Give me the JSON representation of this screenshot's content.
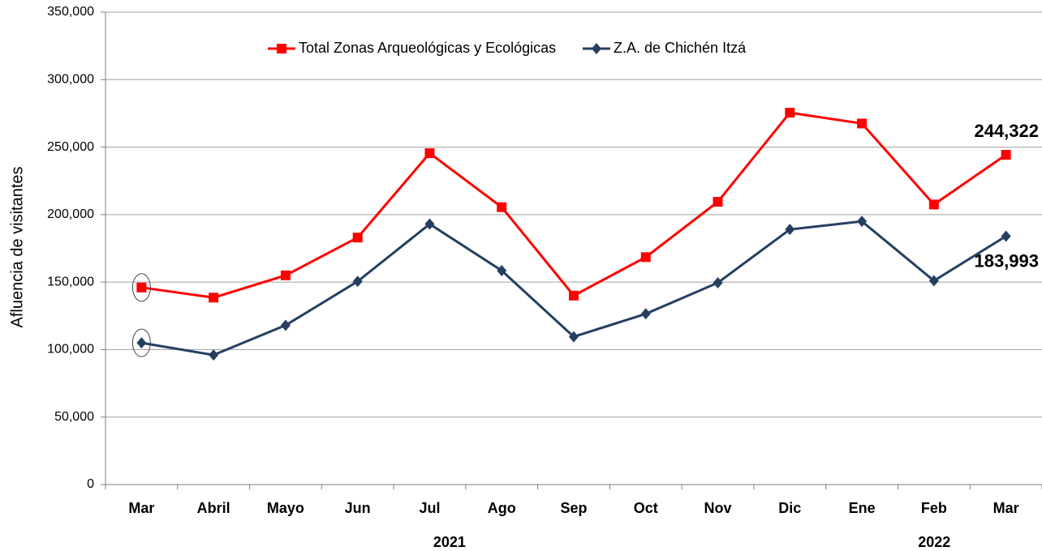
{
  "chart_data": {
    "type": "line",
    "y_label": "Afluencia de visitantes",
    "categories": [
      "Mar",
      "Abril",
      "Mayo",
      "Jun",
      "Jul",
      "Ago",
      "Sep",
      "Oct",
      "Nov",
      "Dic",
      "Ene",
      "Feb",
      "Mar"
    ],
    "x_group_labels": [
      "2021",
      "2022"
    ],
    "series": [
      {
        "name": "Total Zonas Arqueológicas y Ecológicas",
        "color": "#ff0000",
        "marker": "square",
        "values": [
          146000,
          138500,
          155000,
          183000,
          245500,
          205500,
          140000,
          168500,
          209500,
          275500,
          267500,
          207500,
          244322
        ],
        "value_labels": [
          null,
          null,
          null,
          null,
          null,
          null,
          null,
          null,
          null,
          null,
          null,
          null,
          "244,322"
        ]
      },
      {
        "name": "Z.A. de Chichén Itzá",
        "color": "#243f60",
        "marker": "diamond",
        "values": [
          105000,
          96000,
          118000,
          150500,
          193000,
          158500,
          109500,
          126500,
          149500,
          189000,
          195000,
          151000,
          183993
        ],
        "value_labels": [
          null,
          null,
          null,
          null,
          null,
          null,
          null,
          null,
          null,
          null,
          null,
          null,
          "183,993"
        ]
      }
    ],
    "ylim": [
      0,
      350000
    ],
    "yticks": [
      0,
      {
        "value": 50000,
        "label": "50,000"
      },
      {
        "value": 100000,
        "label": "100,000"
      },
      {
        "value": 150000,
        "label": "150,000"
      },
      {
        "value": 200000,
        "label": "200,000"
      },
      {
        "value": 250000,
        "label": "250,000"
      },
      {
        "value": 300000,
        "label": "300,000"
      },
      {
        "value": 350000,
        "label": "350,000"
      }
    ],
    "grid": true
  }
}
